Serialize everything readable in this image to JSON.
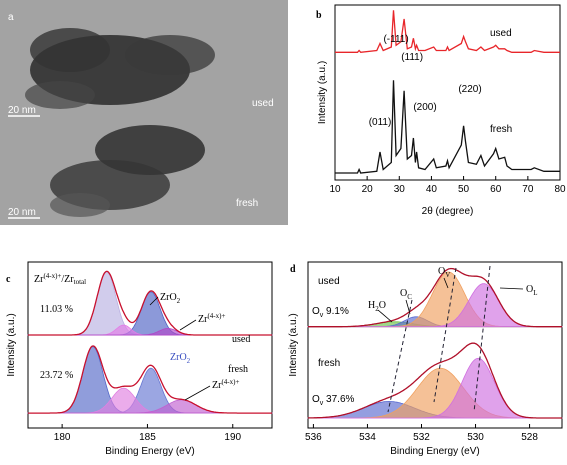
{
  "tem_image": {
    "label": "a",
    "samples": [
      "used",
      "fresh"
    ],
    "scale_bars": [
      "20 nm",
      "20 nm"
    ]
  },
  "chart_data": [
    {
      "type": "line",
      "label": "b",
      "xlabel": "2θ (degree)",
      "ylabel": "Intensity (a.u.)",
      "x": [
        10,
        17,
        17.5,
        18,
        23,
        24,
        25,
        27.5,
        28.2,
        29,
        30.5,
        31.5,
        32.5,
        33.8,
        34.4,
        35,
        35.4,
        36,
        38,
        40.7,
        41.5,
        44.5,
        45,
        45.5,
        49.3,
        50,
        50.6,
        51.5,
        54,
        55.4,
        56.5,
        59.3,
        60,
        61,
        62.8,
        63.5,
        65,
        71,
        72,
        75,
        80
      ],
      "series": [
        {
          "name": "used",
          "color": "#e8262a",
          "values": [
            73,
            73,
            74,
            73,
            74,
            78,
            74,
            76,
            97,
            77,
            79,
            92,
            75,
            76,
            81,
            75,
            77,
            74,
            74,
            76,
            74,
            74,
            76,
            74,
            78,
            82,
            79,
            75,
            74,
            76,
            74,
            76,
            77,
            75,
            75,
            74,
            73,
            73,
            74,
            73,
            73
          ]
        },
        {
          "name": "fresh",
          "color": "#111111",
          "values": [
            4,
            4,
            6,
            4,
            5,
            16,
            6,
            10,
            57,
            14,
            18,
            51,
            12,
            14,
            24,
            10,
            16,
            7,
            6,
            12,
            7,
            8,
            11,
            7,
            20,
            31,
            22,
            10,
            9,
            14,
            8,
            15,
            18,
            12,
            13,
            8,
            6,
            6,
            7,
            5,
            5
          ]
        }
      ],
      "xlim": [
        10,
        80
      ],
      "xticks": [
        10,
        20,
        30,
        40,
        50,
        60,
        70,
        80
      ],
      "ylim": [
        0,
        100
      ],
      "peak_labels": [
        "(011)",
        "(-111)",
        "(111)",
        "(200)",
        "(220)"
      ]
    },
    {
      "type": "xps",
      "label": "c",
      "xlabel": "Binding Energy (eV)",
      "ylabel": "Intensity (a.u.)",
      "xlim": [
        178,
        192.3
      ],
      "xticks": [
        180,
        185,
        190
      ],
      "ylim": [
        0,
        100
      ],
      "envelope_color": "#c8102e",
      "spectra": [
        {
          "name": "used",
          "baseline": 56,
          "ratio": "11.03 %",
          "components": [
            {
              "center": 182.6,
              "height": 38,
              "fwhm": 1.3,
              "color": "#b9b0e2"
            },
            {
              "center": 185.2,
              "height": 26,
              "fwhm": 1.3,
              "color": "#4f63c4"
            },
            {
              "center": 183.6,
              "height": 6,
              "fwhm": 1.0,
              "color": "#e27de6"
            },
            {
              "center": 186.2,
              "height": 4,
              "fwhm": 1.2,
              "color": "#b048c8"
            }
          ]
        },
        {
          "name": "fresh",
          "baseline": 9,
          "ratio": "23.72 %",
          "components": [
            {
              "center": 181.8,
              "height": 40,
              "fwhm": 1.4,
              "color": "#5468c8"
            },
            {
              "center": 185.2,
              "height": 27,
              "fwhm": 1.4,
              "color": "#6676d2"
            },
            {
              "center": 183.6,
              "height": 15,
              "fwhm": 1.6,
              "color": "#e080e0"
            },
            {
              "center": 187.0,
              "height": 8,
              "fwhm": 2.0,
              "color": "#c060d0"
            }
          ]
        }
      ],
      "ratio_label": [
        "Zr",
        "(4-x)+",
        "/Zr",
        "total"
      ],
      "zro2": [
        "ZrO",
        "2"
      ],
      "zr_species": [
        "Zr",
        "(4-x)+"
      ]
    },
    {
      "type": "xps",
      "label": "d",
      "xlabel": "Binding Energy (eV)",
      "ylabel": "Intensity (a.u.)",
      "xlim": [
        536.2,
        526.8
      ],
      "xticks": [
        536,
        534,
        532,
        530,
        528
      ],
      "ylim": [
        0,
        100
      ],
      "envelope_color": "#b0102a",
      "spectra": [
        {
          "name": "used",
          "baseline": 61,
          "ov": " 9.1%",
          "components": [
            {
              "center": 533.0,
              "height": 3,
              "fwhm": 1.6,
              "color": "#6cc24a"
            },
            {
              "center": 532.2,
              "height": 6,
              "fwhm": 1.0,
              "color": "#5a6ad0"
            },
            {
              "center": 531.0,
              "height": 33,
              "fwhm": 1.4,
              "color": "#f0a060"
            },
            {
              "center": 529.7,
              "height": 26,
              "fwhm": 1.3,
              "color": "#d070e0"
            }
          ]
        },
        {
          "name": "fresh",
          "baseline": 6,
          "ov": " 37.6%",
          "components": [
            {
              "center": 533.2,
              "height": 10,
              "fwhm": 2.2,
              "color": "#5a6ad0"
            },
            {
              "center": 531.3,
              "height": 30,
              "fwhm": 2.0,
              "color": "#f0a060"
            },
            {
              "center": 529.9,
              "height": 36,
              "fwhm": 1.4,
              "color": "#d070e0"
            }
          ]
        }
      ],
      "h2o": [
        "H",
        "2",
        "O"
      ],
      "oc": [
        "O",
        "C"
      ],
      "ov_label": [
        "O",
        "V"
      ],
      "ol": [
        "O",
        "L"
      ],
      "ov_short": [
        "O",
        "v"
      ]
    }
  ]
}
